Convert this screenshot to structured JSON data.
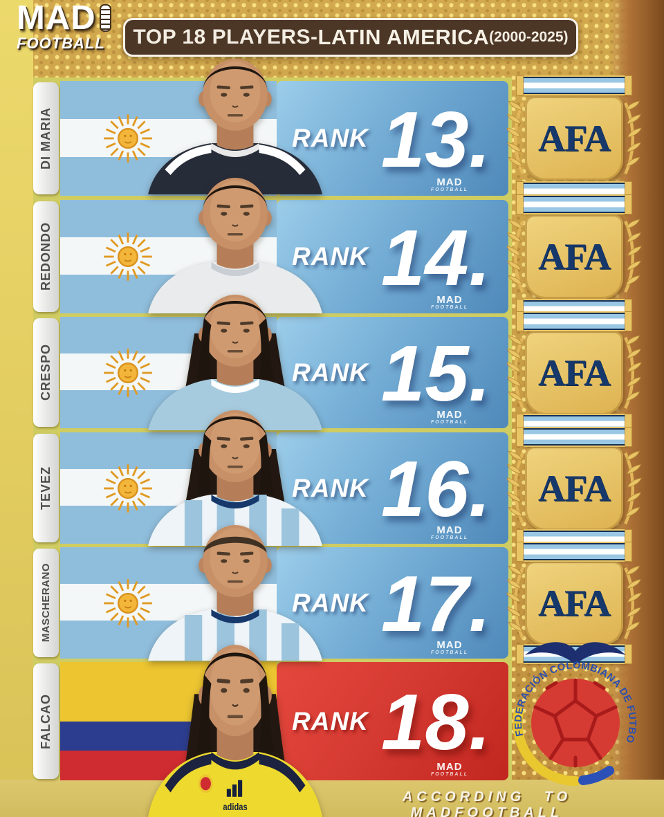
{
  "header": {
    "brand": {
      "line1": "MAD",
      "line2": "FOOTBALL"
    },
    "title": {
      "main": "TOP 18 PLAYERS-",
      "highlight": " LATIN AMERICA",
      "years": "(2000-2025)"
    }
  },
  "watermark": {
    "line1": "MAD",
    "line2": "FOOTBALL"
  },
  "rows": [
    {
      "name": "DI MARIA",
      "rank_label": "RANK",
      "rank": "13.",
      "flag": "argentina",
      "federation": "afa",
      "federation_text": "AFA",
      "panel": "blue",
      "jersey": "navy",
      "hair": "short"
    },
    {
      "name": "REDONDO",
      "rank_label": "RANK",
      "rank": "14.",
      "flag": "argentina",
      "federation": "afa",
      "federation_text": "AFA",
      "panel": "blue",
      "jersey": "white",
      "hair": "short"
    },
    {
      "name": "CRESPO",
      "rank_label": "RANK",
      "rank": "15.",
      "flag": "argentina",
      "federation": "afa",
      "federation_text": "AFA",
      "panel": "blue",
      "jersey": "lightblue",
      "hair": "long"
    },
    {
      "name": "TEVEZ",
      "rank_label": "RANK",
      "rank": "16.",
      "flag": "argentina",
      "federation": "afa",
      "federation_text": "AFA",
      "panel": "blue",
      "jersey": "stripes",
      "hair": "long"
    },
    {
      "name": "MASCHERANO",
      "rank_label": "RANK",
      "rank": "17.",
      "flag": "argentina",
      "federation": "afa",
      "federation_text": "AFA",
      "panel": "blue",
      "jersey": "stripes",
      "hair": "buzz"
    },
    {
      "name": "FALCAO",
      "rank_label": "RANK",
      "rank": "18.",
      "flag": "colombia",
      "federation": "fcf",
      "federation_text": "FEDERACIÓN COLOMBIANA DE FUTBOL",
      "panel": "red",
      "jersey": "colombia",
      "hair": "long",
      "jersey_brand": "adidas"
    }
  ],
  "footer": {
    "credit": "ACCORDING TO MADFOOTBALL"
  },
  "colors": {
    "background_gold": "#c99f47",
    "dot_gold": "#f6e283",
    "left_strip": "#e6d35f",
    "right_strip": "#8a5526",
    "row_gap": "#cfcc62",
    "title_bar_bg": "#4c3626",
    "title_text": "#f3ede2",
    "tab_bg": "#f2f2f0",
    "tab_text": "#4c4c4a",
    "flag_blue": "#8fbddc",
    "flag_white": "#f4f7f8",
    "sun_gold": "#f3b63a",
    "panel_blue_light": "#9ccdea",
    "panel_blue_dark": "#4f89ba",
    "panel_red": "#d63b33",
    "rank_text": "#ffffff",
    "afa_gold": "#e9c565",
    "afa_navy": "#16386b",
    "colombia_yellow": "#ecc531",
    "colombia_blue": "#2c3d90",
    "colombia_red": "#cf2c31",
    "fcf_text_blue": "#2b4fae",
    "footer_text": "#f7f3e8"
  }
}
